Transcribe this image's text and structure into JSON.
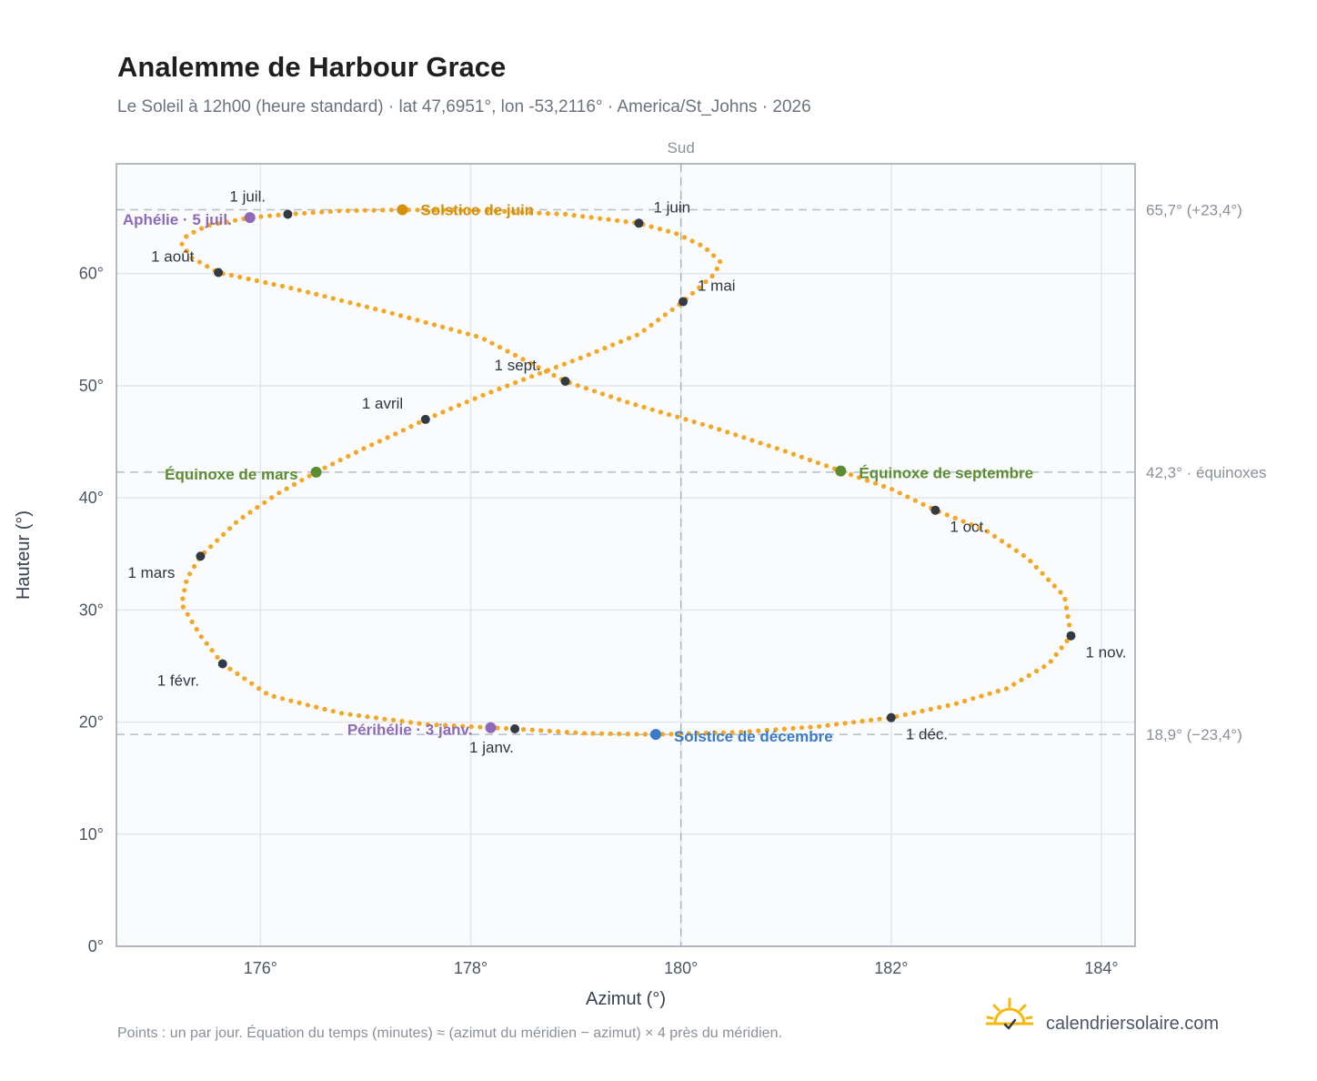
{
  "header": {
    "title": "Analemme de Harbour Grace",
    "subtitle": "Le Soleil à 12h00 (heure standard) · lat 47,6951°, lon -53,2116° · America/St_Johns · 2026"
  },
  "chart_data": {
    "type": "scatter",
    "title": "Analemme de Harbour Grace",
    "xlabel": "Azimut (°)",
    "ylabel": "Hauteur (°)",
    "xlim": [
      174.63,
      184.32
    ],
    "ylim": [
      0,
      69.8
    ],
    "xticks": [
      176,
      178,
      180,
      182,
      184
    ],
    "xtick_labels": [
      "176°",
      "178°",
      "180°",
      "182°",
      "184°"
    ],
    "yticks": [
      0,
      10,
      20,
      30,
      40,
      50,
      60
    ],
    "ytick_labels": [
      "0°",
      "10°",
      "20°",
      "30°",
      "40°",
      "50°",
      "60°"
    ],
    "grid": true,
    "south_line": {
      "x": 180,
      "label": "Sud"
    },
    "reference_lines": [
      {
        "y": 65.7,
        "label": "65,7° (+23,4°)"
      },
      {
        "y": 42.3,
        "label": "42,3° · équinoxes"
      },
      {
        "y": 18.9,
        "label": "18,9° (−23,4°)"
      }
    ],
    "series": [
      {
        "description_note": "",
        "color": "#f5a623",
        "points": [
          [
            178.42,
            19.4
          ],
          [
            177.57,
            19.8
          ],
          [
            176.76,
            20.8
          ],
          [
            176.08,
            22.4
          ],
          [
            175.64,
            25.2
          ],
          [
            175.43,
            27.7
          ],
          [
            175.25,
            30.5
          ],
          [
            175.3,
            32.8
          ],
          [
            175.43,
            34.8
          ],
          [
            175.79,
            38.0
          ],
          [
            176.15,
            40.3
          ],
          [
            176.53,
            42.3
          ],
          [
            176.96,
            44.3
          ],
          [
            177.33,
            45.9
          ],
          [
            177.57,
            47.0
          ],
          [
            178.1,
            49.1
          ],
          [
            178.57,
            50.8
          ],
          [
            179.05,
            52.5
          ],
          [
            179.6,
            54.6
          ],
          [
            180.02,
            57.5
          ],
          [
            180.3,
            59.8
          ],
          [
            180.38,
            61.0
          ],
          [
            180.22,
            62.4
          ],
          [
            179.95,
            63.6
          ],
          [
            179.6,
            64.5
          ],
          [
            178.9,
            65.3
          ],
          [
            178.2,
            65.6
          ],
          [
            177.35,
            65.7
          ],
          [
            176.75,
            65.6
          ],
          [
            176.26,
            65.3
          ],
          [
            175.9,
            65.0
          ],
          [
            175.5,
            64.3
          ],
          [
            175.3,
            63.4
          ],
          [
            175.25,
            62.6
          ],
          [
            175.35,
            61.4
          ],
          [
            175.6,
            60.1
          ],
          [
            176.3,
            58.7
          ],
          [
            177.2,
            56.6
          ],
          [
            178.1,
            54.3
          ],
          [
            178.9,
            50.4
          ],
          [
            179.5,
            48.5
          ],
          [
            180.3,
            46.3
          ],
          [
            180.95,
            44.3
          ],
          [
            181.52,
            42.4
          ],
          [
            182.0,
            40.8
          ],
          [
            182.42,
            38.9
          ],
          [
            182.9,
            37.1
          ],
          [
            183.3,
            34.6
          ],
          [
            183.65,
            31.2
          ],
          [
            183.71,
            27.7
          ],
          [
            183.5,
            25.2
          ],
          [
            183.1,
            23.0
          ],
          [
            182.6,
            21.6
          ],
          [
            182.0,
            20.4
          ],
          [
            181.3,
            19.6
          ],
          [
            180.55,
            19.1
          ],
          [
            179.76,
            18.9
          ],
          [
            179.1,
            19.0
          ],
          [
            178.42,
            19.4
          ]
        ]
      }
    ],
    "month_markers": [
      {
        "label": "1 janv.",
        "x": 178.42,
        "y": 19.4
      },
      {
        "label": "1 févr.",
        "x": 175.64,
        "y": 25.2
      },
      {
        "label": "1 mars",
        "x": 175.43,
        "y": 34.8
      },
      {
        "label": "1 avril",
        "x": 177.57,
        "y": 47.0
      },
      {
        "label": "1 mai",
        "x": 180.02,
        "y": 57.5
      },
      {
        "label": "1 juin",
        "x": 179.6,
        "y": 64.5
      },
      {
        "label": "1 juil.",
        "x": 176.26,
        "y": 65.3
      },
      {
        "label": "1 août",
        "x": 175.6,
        "y": 60.1
      },
      {
        "label": "1 sept.",
        "x": 178.9,
        "y": 50.4
      },
      {
        "label": "1 oct.",
        "x": 182.42,
        "y": 38.9
      },
      {
        "label": "1 nov.",
        "x": 183.71,
        "y": 27.7
      },
      {
        "label": "1 déc.",
        "x": 182.0,
        "y": 20.4
      }
    ],
    "events": [
      {
        "label": "Solstice de juin",
        "x": 177.35,
        "y": 65.7,
        "color": "#d4900a"
      },
      {
        "label": "Aphélie · 5 juil.",
        "x": 175.9,
        "y": 65.0,
        "color": "#8e6ab8"
      },
      {
        "label": "Équinoxe de mars",
        "x": 176.53,
        "y": 42.3,
        "color": "#5b8c32"
      },
      {
        "label": "Équinoxe de septembre",
        "x": 181.52,
        "y": 42.4,
        "color": "#5b8c32"
      },
      {
        "label": "Périhélie · 3 janv.",
        "x": 178.19,
        "y": 19.5,
        "color": "#8e6ab8"
      },
      {
        "label": "Solstice de décembre",
        "x": 179.76,
        "y": 18.9,
        "color": "#3a7bc8"
      }
    ]
  },
  "footer": {
    "note": "Points : un par jour. Équation du temps (minutes) ≈ (azimut du méridien − azimut) × 4 près du méridien.",
    "brand": "calendriersolaire.com"
  },
  "colors": {
    "curve": "#f5a623",
    "month_marker": "#343a44",
    "plot_bg": "#f9fbfd",
    "frame": "#9aa3b0",
    "grid": "#e3e7ec",
    "ref_line": "#b6bdc6",
    "logo": "#f5b80a"
  }
}
